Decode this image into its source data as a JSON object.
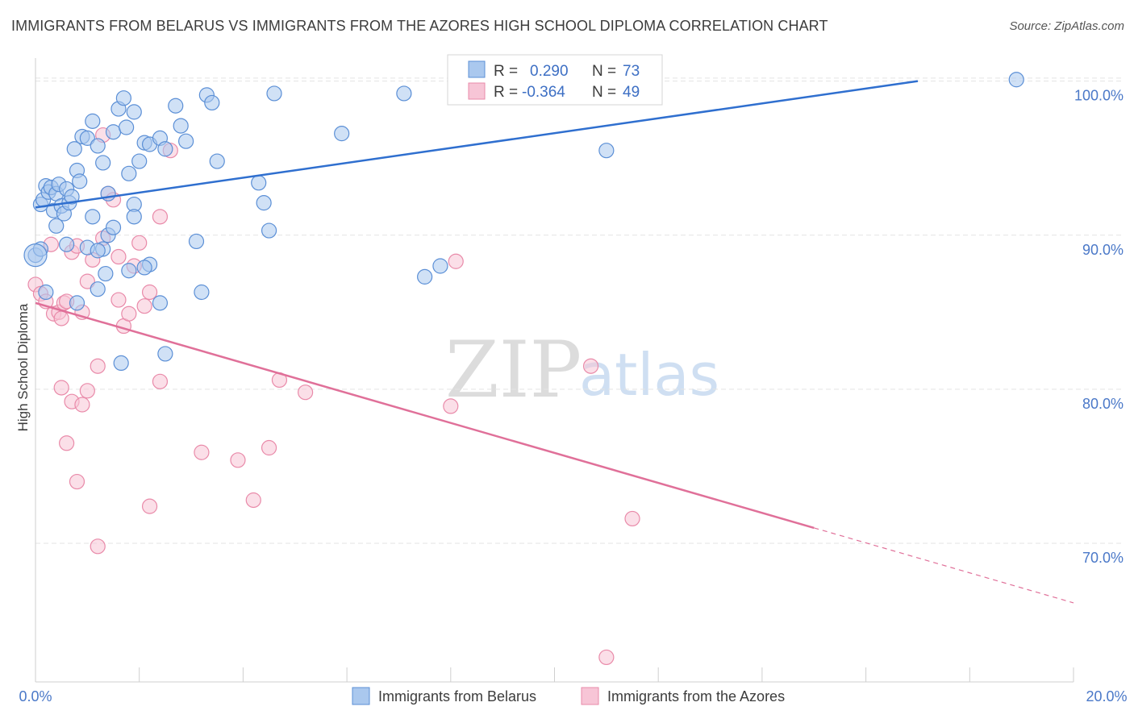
{
  "header": {
    "title": "IMMIGRANTS FROM BELARUS VS IMMIGRANTS FROM THE AZORES HIGH SCHOOL DIPLOMA CORRELATION CHART",
    "source": "Source: ZipAtlas.com"
  },
  "watermark": {
    "zip": "ZIP",
    "atlas": "atlas"
  },
  "stats": {
    "r_label": "R =",
    "n_label": "N =",
    "rows": [
      {
        "r": "0.290",
        "n": "73"
      },
      {
        "r": "-0.364",
        "n": "49"
      }
    ]
  },
  "colors": {
    "belarus_fill": "#aac8ee",
    "belarus_stroke": "#5b8fd6",
    "belarus_line": "#2f6fcf",
    "azores_fill": "#f7c5d6",
    "azores_stroke": "#e98aa9",
    "azores_line": "#e07099",
    "grid": "#e3e3e3",
    "axis_text": "#4a78c8"
  },
  "chart_data": {
    "type": "scatter",
    "title": "IMMIGRANTS FROM BELARUS VS IMMIGRANTS FROM THE AZORES HIGH SCHOOL DIPLOMA CORRELATION CHART",
    "xlabel": "",
    "ylabel": "High School Diploma",
    "xlim": [
      0,
      20
    ],
    "ylim": [
      61,
      101.5
    ],
    "x_tick_labels": [
      "0.0%",
      "20.0%"
    ],
    "y_ticks": [
      {
        "value": 100,
        "label": "100.0%"
      },
      {
        "value": 90,
        "label": "90.0%"
      },
      {
        "value": 80,
        "label": "80.0%"
      },
      {
        "value": 70,
        "label": "70.0%"
      }
    ],
    "grid": true,
    "legend_position": "bottom-center",
    "series": [
      {
        "name": "Immigrants from Belarus",
        "r": 0.29,
        "n": 73,
        "trend": {
          "x0": 0,
          "y0": 91.8,
          "x1": 17,
          "y1": 100.0,
          "dashed_to_x": null
        },
        "points": [
          [
            0.1,
            92.0
          ],
          [
            0.15,
            92.3
          ],
          [
            0.2,
            93.2
          ],
          [
            0.25,
            92.8
          ],
          [
            0.3,
            93.1
          ],
          [
            0.35,
            91.6
          ],
          [
            0.4,
            92.7
          ],
          [
            0.45,
            93.3
          ],
          [
            0.5,
            91.9
          ],
          [
            0.55,
            91.4
          ],
          [
            0.6,
            93.0
          ],
          [
            0.65,
            92.1
          ],
          [
            0.7,
            92.5
          ],
          [
            0.75,
            95.6
          ],
          [
            0.8,
            94.2
          ],
          [
            0.85,
            93.5
          ],
          [
            0.9,
            96.4
          ],
          [
            1.0,
            96.3
          ],
          [
            1.1,
            97.4
          ],
          [
            1.2,
            95.8
          ],
          [
            1.3,
            94.7
          ],
          [
            1.4,
            92.7
          ],
          [
            1.5,
            96.7
          ],
          [
            1.6,
            98.2
          ],
          [
            1.7,
            98.9
          ],
          [
            1.75,
            97.0
          ],
          [
            1.8,
            94.0
          ],
          [
            1.9,
            92.0
          ],
          [
            2.0,
            94.8
          ],
          [
            2.1,
            96.0
          ],
          [
            2.2,
            95.9
          ],
          [
            2.4,
            96.3
          ],
          [
            2.5,
            95.6
          ],
          [
            2.7,
            98.4
          ],
          [
            2.8,
            97.1
          ],
          [
            2.9,
            96.1
          ],
          [
            3.3,
            99.1
          ],
          [
            3.4,
            98.6
          ],
          [
            3.5,
            94.8
          ],
          [
            4.6,
            99.2
          ],
          [
            4.3,
            93.4
          ],
          [
            4.4,
            92.1
          ],
          [
            4.5,
            90.3
          ],
          [
            5.9,
            96.6
          ],
          [
            7.1,
            99.2
          ],
          [
            7.5,
            87.3
          ],
          [
            7.8,
            88.0
          ],
          [
            11.0,
            95.5
          ],
          [
            18.9,
            100.1
          ],
          [
            0.0,
            88.7
          ],
          [
            0.1,
            89.1
          ],
          [
            0.2,
            86.3
          ],
          [
            0.4,
            90.6
          ],
          [
            0.6,
            89.4
          ],
          [
            0.8,
            85.6
          ],
          [
            1.0,
            89.2
          ],
          [
            1.1,
            91.2
          ],
          [
            1.2,
            86.5
          ],
          [
            1.3,
            89.1
          ],
          [
            1.35,
            87.5
          ],
          [
            1.4,
            90.0
          ],
          [
            1.5,
            90.5
          ],
          [
            1.8,
            87.7
          ],
          [
            1.9,
            91.2
          ],
          [
            2.2,
            88.1
          ],
          [
            2.4,
            85.6
          ],
          [
            2.5,
            82.3
          ],
          [
            3.1,
            89.6
          ],
          [
            3.2,
            86.3
          ],
          [
            1.65,
            81.7
          ],
          [
            1.2,
            89.0
          ],
          [
            2.1,
            87.9
          ],
          [
            1.9,
            98.0
          ]
        ]
      },
      {
        "name": "Immigrants from the Azores",
        "r": -0.364,
        "n": 49,
        "trend": {
          "x0": 0,
          "y0": 85.6,
          "x1": 15.0,
          "y1": 71.0,
          "dashed_to_x": 20.0
        },
        "points": [
          [
            0.0,
            86.8
          ],
          [
            0.1,
            86.2
          ],
          [
            0.2,
            85.7
          ],
          [
            0.3,
            89.4
          ],
          [
            0.35,
            84.9
          ],
          [
            0.45,
            85.0
          ],
          [
            0.5,
            84.6
          ],
          [
            0.55,
            85.6
          ],
          [
            0.6,
            85.7
          ],
          [
            0.7,
            88.9
          ],
          [
            0.8,
            89.3
          ],
          [
            0.9,
            85.0
          ],
          [
            1.0,
            87.0
          ],
          [
            1.1,
            88.4
          ],
          [
            1.2,
            81.5
          ],
          [
            1.3,
            96.5
          ],
          [
            1.4,
            92.7
          ],
          [
            1.5,
            92.3
          ],
          [
            1.6,
            85.8
          ],
          [
            1.7,
            84.1
          ],
          [
            1.8,
            84.9
          ],
          [
            1.9,
            88.0
          ],
          [
            2.0,
            89.5
          ],
          [
            2.1,
            85.4
          ],
          [
            2.2,
            86.3
          ],
          [
            2.4,
            91.2
          ],
          [
            2.6,
            95.5
          ],
          [
            1.6,
            88.6
          ],
          [
            1.3,
            89.8
          ],
          [
            0.5,
            80.1
          ],
          [
            0.7,
            79.2
          ],
          [
            0.9,
            79.0
          ],
          [
            1.0,
            79.9
          ],
          [
            0.6,
            76.5
          ],
          [
            0.8,
            74.0
          ],
          [
            1.2,
            69.8
          ],
          [
            2.2,
            72.4
          ],
          [
            3.2,
            75.9
          ],
          [
            3.9,
            75.4
          ],
          [
            4.2,
            72.8
          ],
          [
            4.5,
            76.2
          ],
          [
            4.7,
            80.6
          ],
          [
            5.2,
            79.8
          ],
          [
            8.1,
            88.3
          ],
          [
            8.0,
            78.9
          ],
          [
            11.5,
            71.6
          ],
          [
            11.0,
            62.6
          ],
          [
            10.7,
            81.5
          ],
          [
            2.4,
            80.5
          ]
        ]
      }
    ]
  },
  "legend": {
    "items": [
      {
        "label": "Immigrants from Belarus"
      },
      {
        "label": "Immigrants from the Azores"
      }
    ]
  }
}
